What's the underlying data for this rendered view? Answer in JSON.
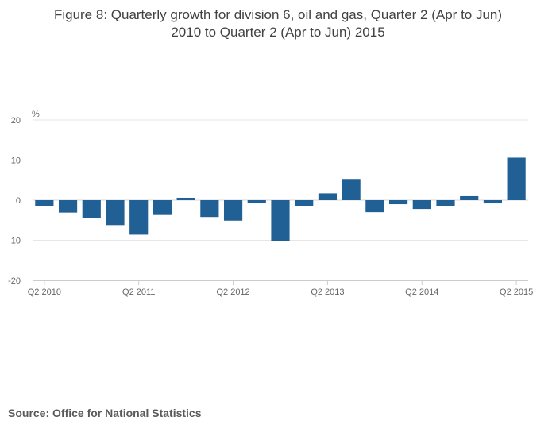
{
  "chart_data": {
    "type": "bar",
    "title": "Figure 8: Quarterly growth for division 6, oil and gas, Quarter 2 (Apr to Jun) 2010 to Quarter 2 (Apr to Jun) 2015",
    "ylabel": "%",
    "xlabel": "",
    "ylim": [
      -20,
      20
    ],
    "yticks": [
      20,
      10,
      0,
      -10,
      -20
    ],
    "grid": true,
    "tick_labels": [
      "Q2 2010",
      "Q2 2011",
      "Q2 2012",
      "Q2 2013",
      "Q2 2014",
      "Q2 2015"
    ],
    "categories": [
      "Q2 2010",
      "Q3 2010",
      "Q4 2010",
      "Q1 2011",
      "Q2 2011",
      "Q3 2011",
      "Q4 2011",
      "Q1 2012",
      "Q2 2012",
      "Q3 2012",
      "Q4 2012",
      "Q1 2013",
      "Q2 2013",
      "Q3 2013",
      "Q4 2013",
      "Q1 2014",
      "Q2 2014",
      "Q3 2014",
      "Q4 2014",
      "Q1 2015",
      "Q2 2015"
    ],
    "values": [
      -1.4,
      -3.1,
      -4.4,
      -6.2,
      -8.6,
      -3.7,
      0.6,
      -4.2,
      -5.1,
      -0.8,
      -10.2,
      -1.5,
      1.7,
      5.1,
      -3.0,
      -1.0,
      -2.2,
      -1.5,
      1.0,
      -0.8,
      10.6
    ],
    "bar_color": "#206095"
  },
  "title_lines": [
    "Figure 8: Quarterly growth for division 6, oil and gas, Quarter 2 (Apr to Jun)",
    "2010 to Quarter 2 (Apr to Jun) 2015"
  ],
  "source": "Source: Office for National Statistics"
}
